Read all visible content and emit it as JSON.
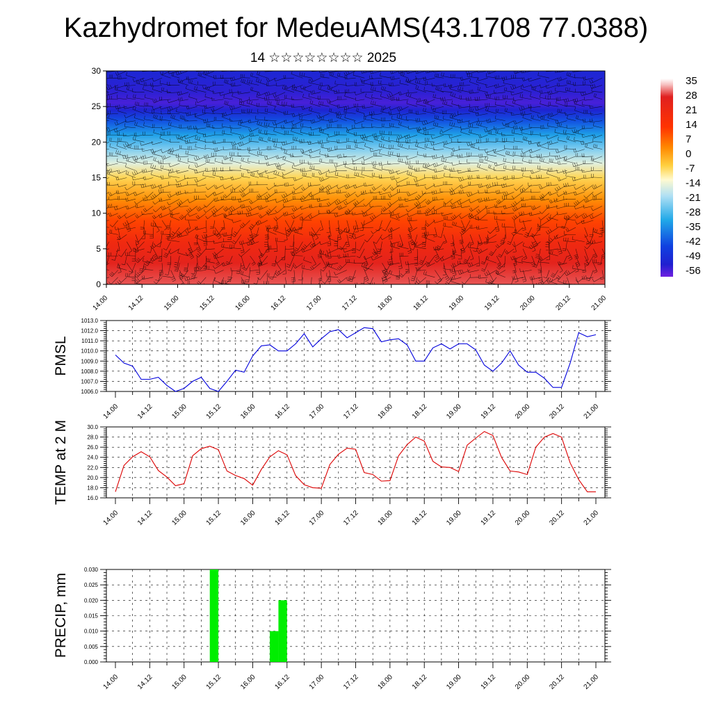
{
  "header": {
    "title": "Kazhydromet for MedeuAMS(43.1708 77.0388)",
    "subtitle": "14 ☆☆☆☆☆☆☆☆ 2025"
  },
  "chart_data": [
    {
      "type": "heatmap",
      "ylim": [
        0,
        30
      ],
      "yticks": [
        "0",
        "5",
        "10",
        "15",
        "20",
        "25",
        "30"
      ],
      "xticks": [
        "14.00",
        "14.12",
        "15.00",
        "15.12",
        "16.00",
        "16.12",
        "17.00",
        "17.12",
        "18.00",
        "18.12",
        "19.00",
        "19.12",
        "20.00",
        "20.12",
        "21.00"
      ],
      "colorbar": {
        "labels": [
          "35",
          "28",
          "21",
          "14",
          "7",
          "0",
          "-7",
          "-14",
          "-21",
          "-28",
          "-35",
          "-42",
          "-49",
          "-56"
        ],
        "range": [
          -60,
          38
        ]
      },
      "wind_barbs": true,
      "level_temperatures": [
        {
          "level": 0,
          "temp": 31
        },
        {
          "level": 3,
          "temp": 27
        },
        {
          "level": 6,
          "temp": 21
        },
        {
          "level": 9,
          "temp": 12
        },
        {
          "level": 12,
          "temp": 3
        },
        {
          "level": 15,
          "temp": -6
        },
        {
          "level": 17,
          "temp": -15
        },
        {
          "level": 19,
          "temp": -24
        },
        {
          "level": 21,
          "temp": -33
        },
        {
          "level": 23,
          "temp": -43
        },
        {
          "level": 24.5,
          "temp": -53
        },
        {
          "level": 25.5,
          "temp": -57
        },
        {
          "level": 27,
          "temp": -55
        },
        {
          "level": 30,
          "temp": -52
        }
      ]
    },
    {
      "type": "line",
      "ylabel": "PMSL",
      "ylim": [
        1006,
        1013
      ],
      "yticks": [
        "1006.0",
        "1007.0",
        "1008.0",
        "1009.0",
        "1010.0",
        "1011.0",
        "1012.0",
        "1013.0"
      ],
      "xticks": [
        "14.00",
        "14.12",
        "15.00",
        "15.12",
        "16.00",
        "16.12",
        "17.00",
        "17.12",
        "18.00",
        "18.12",
        "19.00",
        "19.12",
        "20.00",
        "20.12",
        "21.00"
      ],
      "color": "#0000dd",
      "values": [
        1009.6,
        1008.8,
        1008.5,
        1007.2,
        1007.2,
        1007.4,
        1006.6,
        1006.0,
        1006.3,
        1007.0,
        1007.4,
        1006.3,
        1006.0,
        1007.0,
        1008.1,
        1007.9,
        1009.5,
        1010.5,
        1010.6,
        1010.0,
        1010.0,
        1010.7,
        1011.7,
        1010.4,
        1011.2,
        1011.9,
        1012.1,
        1011.3,
        1011.8,
        1012.3,
        1012.2,
        1010.9,
        1011.1,
        1011.2,
        1010.6,
        1009.0,
        1009.0,
        1010.3,
        1010.7,
        1010.2,
        1010.7,
        1010.7,
        1010.1,
        1008.6,
        1008.0,
        1008.8,
        1010.0,
        1008.6,
        1007.9,
        1007.9,
        1007.3,
        1006.4,
        1006.4,
        1008.8,
        1011.8,
        1011.4,
        1011.6
      ]
    },
    {
      "type": "line",
      "ylabel": "TEMP at 2 M",
      "ylim": [
        16,
        30
      ],
      "yticks": [
        "16.0",
        "18.0",
        "20.0",
        "22.0",
        "24.0",
        "26.0",
        "28.0",
        "30.0"
      ],
      "xticks": [
        "14.00",
        "14.12",
        "15.00",
        "15.12",
        "16.00",
        "16.12",
        "17.00",
        "17.12",
        "18.00",
        "18.12",
        "19.00",
        "19.12",
        "20.00",
        "20.12",
        "21.00"
      ],
      "color": "#dd0000",
      "values": [
        17.2,
        22.4,
        24.1,
        25.1,
        24.1,
        21.4,
        20.1,
        18.4,
        18.8,
        24.3,
        25.7,
        26.2,
        25.5,
        21.3,
        20.4,
        19.8,
        18.5,
        21.6,
        24.1,
        25.3,
        24.5,
        20.4,
        18.6,
        18.0,
        17.9,
        22.6,
        24.6,
        25.8,
        25.6,
        21.0,
        20.6,
        19.3,
        19.4,
        24.3,
        26.5,
        28.0,
        27.2,
        23.2,
        22.1,
        22.0,
        21.2,
        26.4,
        27.8,
        29.1,
        28.3,
        24.0,
        21.3,
        21.1,
        20.6,
        26.0,
        28.0,
        28.7,
        28.0,
        22.9,
        19.6,
        17.2,
        17.2
      ]
    },
    {
      "type": "bar",
      "ylabel": "PRECIP, mm",
      "ylim": [
        0,
        0.03
      ],
      "yticks": [
        "0.000",
        "0.005",
        "0.010",
        "0.015",
        "0.020",
        "0.025",
        "0.030"
      ],
      "xticks": [
        "14.00",
        "14.12",
        "15.00",
        "15.12",
        "16.00",
        "16.12",
        "17.00",
        "17.12",
        "18.00",
        "18.12",
        "19.00",
        "19.12",
        "20.00",
        "20.12",
        "21.00"
      ],
      "color": "#00ee00",
      "bars": [
        {
          "start_hour": 33,
          "end_hour": 36,
          "value": 0.03
        },
        {
          "start_hour": 54,
          "end_hour": 57,
          "value": 0.01
        },
        {
          "start_hour": 57,
          "end_hour": 60,
          "value": 0.02
        }
      ]
    }
  ]
}
